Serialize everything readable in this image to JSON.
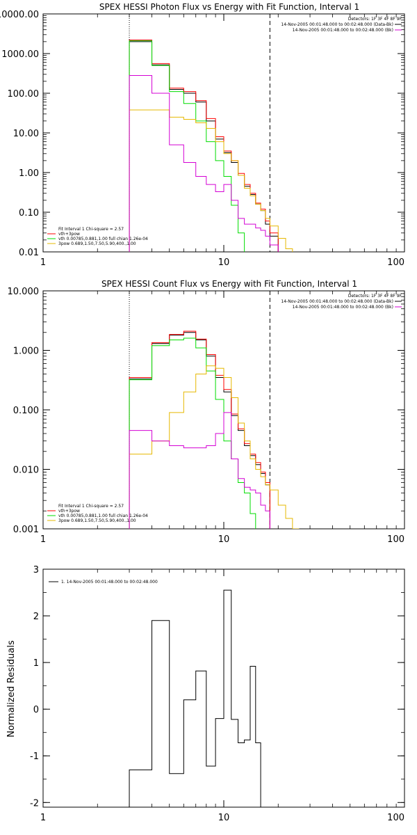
{
  "chart_data": [
    {
      "type": "line",
      "title": "SPEX HESSI Photon Flux vs Energy with Fit Function, Interval 1",
      "xscale": "log",
      "yscale": "log",
      "xlim": [
        1,
        100
      ],
      "ylim": [
        0.01,
        10000
      ],
      "xticks": [
        {
          "v": 1,
          "label": "1"
        },
        {
          "v": 10,
          "label": "10"
        },
        {
          "v": 100,
          "label": "100"
        }
      ],
      "yticks": [
        {
          "v": 0.01,
          "label": "0.01"
        },
        {
          "v": 0.1,
          "label": "0.10"
        },
        {
          "v": 1,
          "label": "1.00"
        },
        {
          "v": 10,
          "label": "10.00"
        },
        {
          "v": 100,
          "label": "100.00"
        },
        {
          "v": 1000,
          "label": "1000.00"
        },
        {
          "v": 10000,
          "label": "10000.00"
        }
      ],
      "vlines": [
        {
          "x": 3,
          "style": "dotted"
        },
        {
          "x": 18,
          "style": "dashed"
        }
      ],
      "legend_top": [
        "Detectors: 1F 3F 4F 8F 9F",
        "14-Nov-2005 00:01:48.000 to 00:02:48.000 (Data-Bk)",
        "14-Nov-2005 00:01:48.000 to 00:02:48.000 (Bk)"
      ],
      "legend_top_colors": [
        "",
        "#000000",
        "#d400d4"
      ],
      "legend_bottom": [
        "Fit Interval 1   Chi-square = 2.57",
        "vth+3pow",
        "vth 0.00785,0.881,1.00  full chian 1.26e-04",
        "3pow 0.689,1.50,7.50,5.90,400.,1.00"
      ],
      "legend_bottom_colors": [
        "",
        "#ff0000",
        "#00dd00",
        "#e6b800"
      ],
      "edges": [
        3,
        4,
        5,
        6,
        7,
        8,
        9,
        10,
        11,
        12,
        13,
        14,
        15,
        16,
        17,
        18,
        20,
        22,
        24,
        26
      ],
      "series": [
        {
          "color": "#000000",
          "values": [
            2000,
            520,
            125,
            100,
            60,
            20,
            7,
            3.2,
            1.8,
            0.85,
            0.45,
            0.28,
            0.16,
            0.11,
            0.05,
            0.025,
            null,
            null,
            null
          ]
        },
        {
          "color": "#ff0000",
          "values": [
            2200,
            560,
            135,
            110,
            65,
            23,
            8,
            3.5,
            2,
            0.95,
            0.5,
            0.3,
            0.17,
            0.12,
            0.06,
            0.03,
            null,
            null,
            null
          ]
        },
        {
          "color": "#00dd00",
          "values": [
            2100,
            500,
            110,
            55,
            20,
            6,
            2,
            0.8,
            0.15,
            0.03,
            0.008,
            null,
            null,
            null,
            null,
            null,
            null,
            null,
            null
          ]
        },
        {
          "color": "#e6b800",
          "values": [
            38,
            38,
            25,
            22,
            18,
            13,
            6,
            3,
            2,
            0.85,
            0.4,
            0.26,
            0.16,
            0.11,
            0.07,
            0.045,
            0.022,
            0.012,
            0.008
          ]
        },
        {
          "color": "#d400d4",
          "values": [
            280,
            100,
            5,
            1.8,
            0.8,
            0.5,
            0.33,
            0.5,
            0.2,
            0.07,
            0.05,
            0.05,
            0.04,
            0.035,
            0.025,
            0.015,
            null,
            null,
            null
          ]
        }
      ]
    },
    {
      "type": "line",
      "title": "SPEX HESSI Count Flux vs Energy with Fit Function, Interval 1",
      "xscale": "log",
      "yscale": "log",
      "xlim": [
        1,
        100
      ],
      "ylim": [
        0.001,
        10
      ],
      "xticks": [
        {
          "v": 1,
          "label": "1"
        },
        {
          "v": 10,
          "label": "10"
        },
        {
          "v": 100,
          "label": "100"
        }
      ],
      "yticks": [
        {
          "v": 0.001,
          "label": "0.001"
        },
        {
          "v": 0.01,
          "label": "0.010"
        },
        {
          "v": 0.1,
          "label": "0.100"
        },
        {
          "v": 1,
          "label": "1.000"
        },
        {
          "v": 10,
          "label": "10.000"
        }
      ],
      "vlines": [
        {
          "x": 3,
          "style": "dotted"
        },
        {
          "x": 18,
          "style": "dashed"
        }
      ],
      "legend_top": [
        "Detectors: 1F 3F 4F 8F 9F",
        "14-Nov-2005 00:01:48.000 to 00:02:48.000 (Data-Bk)",
        "14-Nov-2005 00:01:48.000 to 00:02:48.000 (Bk)"
      ],
      "legend_top_colors": [
        "",
        "#000000",
        "#d400d4"
      ],
      "legend_bottom": [
        "Fit Interval 1   Chi-square = 2.57",
        "vth+3pow",
        "vth 0.00785,0.881,1.00  full chian 1.26e-04",
        "3pow 0.689,1.50,7.50,5.90,400.,1.00"
      ],
      "legend_bottom_colors": [
        "",
        "#ff0000",
        "#00dd00",
        "#e6b800"
      ],
      "edges": [
        3,
        4,
        5,
        6,
        7,
        8,
        9,
        10,
        11,
        12,
        13,
        14,
        15,
        16,
        17,
        18,
        20,
        22,
        24,
        26
      ],
      "series": [
        {
          "color": "#000000",
          "values": [
            0.33,
            1.3,
            1.8,
            2.0,
            1.5,
            0.8,
            0.35,
            0.2,
            0.08,
            0.045,
            0.025,
            0.017,
            0.012,
            0.0085,
            0.0055,
            null,
            null,
            null,
            null
          ]
        },
        {
          "color": "#ff0000",
          "values": [
            0.35,
            1.35,
            1.85,
            2.1,
            1.55,
            0.85,
            0.38,
            0.22,
            0.085,
            0.048,
            0.027,
            0.018,
            0.013,
            0.009,
            0.006,
            null,
            null,
            null,
            null
          ]
        },
        {
          "color": "#00dd00",
          "values": [
            0.32,
            1.2,
            1.5,
            1.6,
            1.1,
            0.45,
            0.15,
            0.03,
            0.015,
            0.006,
            0.004,
            0.0018,
            null,
            null,
            null,
            null,
            null,
            null,
            null
          ]
        },
        {
          "color": "#e6b800",
          "values": [
            0.018,
            0.03,
            0.09,
            0.2,
            0.4,
            0.55,
            0.5,
            0.35,
            0.16,
            0.06,
            0.03,
            0.015,
            0.01,
            0.0075,
            0.0055,
            0.0045,
            0.0025,
            0.0015,
            0.001
          ]
        },
        {
          "color": "#d400d4",
          "values": [
            0.045,
            0.03,
            0.025,
            0.023,
            0.023,
            0.025,
            0.04,
            0.09,
            0.015,
            0.007,
            0.005,
            0.0045,
            0.004,
            0.0025,
            0.002,
            null,
            null,
            null,
            null
          ]
        }
      ]
    },
    {
      "type": "line",
      "title": "",
      "xscale": "log",
      "yscale": "linear",
      "xlim": [
        1,
        100
      ],
      "ylim": [
        -2.1,
        3
      ],
      "ylabel": "Normalized Residuals",
      "xticks": [
        {
          "v": 1,
          "label": "1"
        },
        {
          "v": 10,
          "label": "10"
        },
        {
          "v": 100,
          "label": "100"
        }
      ],
      "yticks": [
        {
          "v": -2,
          "label": "-2"
        },
        {
          "v": -1,
          "label": "-1"
        },
        {
          "v": 0,
          "label": "0"
        },
        {
          "v": 1,
          "label": "1"
        },
        {
          "v": 2,
          "label": "2"
        },
        {
          "v": 3,
          "label": "3"
        }
      ],
      "legend_top_left": "1. 14-Nov-2005 00:01:48.000 to 00:02:48.000",
      "edges": [
        3,
        4,
        5,
        6,
        7,
        8,
        9,
        10,
        11,
        12,
        13,
        14,
        15,
        16,
        17,
        18
      ],
      "series": [
        {
          "color": "#000000",
          "values": [
            -1.3,
            1.9,
            -1.38,
            0.2,
            0.82,
            -1.22,
            -0.2,
            2.55,
            -0.22,
            -0.72,
            -0.66,
            0.92,
            -0.72,
            null,
            null
          ]
        }
      ]
    }
  ]
}
